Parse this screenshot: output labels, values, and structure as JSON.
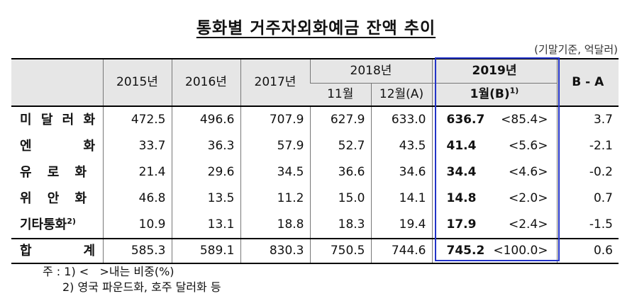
{
  "title": "통화별 거주자외화예금 잔액 추이",
  "unit": "(기말기준, 억달러)",
  "header": {
    "years": [
      "2015년",
      "2016년",
      "2017년"
    ],
    "year2018": "2018년",
    "year2019": "2019년",
    "m11": "11월",
    "m12": "12월(A)",
    "m1": "1월(B)",
    "m1_sup": "1)",
    "diff": "B - A"
  },
  "rows": [
    {
      "label_chars": [
        "미",
        "달",
        "러",
        "화"
      ],
      "v2015": "472.5",
      "v2016": "496.6",
      "v2017": "707.9",
      "m11": "627.9",
      "m12": "633.0",
      "m1": "636.7",
      "share": "<85.4>",
      "diff": "3.7"
    },
    {
      "label_chars": [
        "엔",
        "화"
      ],
      "v2015": "33.7",
      "v2016": "36.3",
      "v2017": "57.9",
      "m11": "52.7",
      "m12": "43.5",
      "m1": "41.4",
      "share": "<5.6>",
      "diff": "-2.1"
    },
    {
      "label_chars": [
        "유",
        "로",
        "화"
      ],
      "v2015": "21.4",
      "v2016": "29.6",
      "v2017": "34.5",
      "m11": "36.6",
      "m12": "34.6",
      "m1": "34.4",
      "share": "<4.6>",
      "diff": "-0.2"
    },
    {
      "label_chars": [
        "위",
        "안",
        "화"
      ],
      "v2015": "46.8",
      "v2016": "13.5",
      "v2017": "11.2",
      "m11": "15.0",
      "m12": "14.1",
      "m1": "14.8",
      "share": "<2.0>",
      "diff": "0.7"
    },
    {
      "label": "기타통화",
      "label_sup": "2)",
      "v2015": "10.9",
      "v2016": "13.1",
      "v2017": "18.8",
      "m11": "18.3",
      "m12": "19.4",
      "m1": "17.9",
      "share": "<2.4>",
      "diff": "-1.5"
    }
  ],
  "total": {
    "label_chars": [
      "합",
      "계"
    ],
    "v2015": "585.3",
    "v2016": "589.1",
    "v2017": "830.3",
    "m11": "750.5",
    "m12": "744.6",
    "m1": "745.2",
    "share": "<100.0>",
    "diff": "0.6"
  },
  "notes": {
    "line1": "주 : 1) <   >내는 비중(%)",
    "line2": "2) 영국 파운드화, 호주 달러화 등"
  },
  "colors": {
    "highlight_border": "#2233c8",
    "header_bg": "#e6e6e6"
  }
}
